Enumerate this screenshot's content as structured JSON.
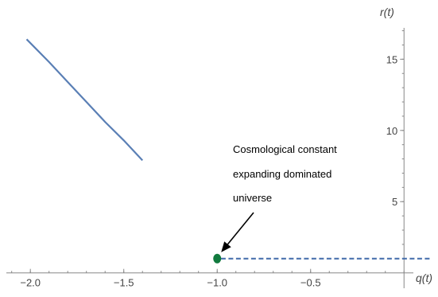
{
  "chart_data": {
    "type": "line",
    "xlabel": "q(t)",
    "ylabel": "r(t)",
    "xlim": [
      -2.12,
      0.05
    ],
    "ylim": [
      -0.8,
      17.2
    ],
    "x_ticks": [
      {
        "value": -2.0,
        "label": "−2.0"
      },
      {
        "value": -1.5,
        "label": "−1.5"
      },
      {
        "value": -1.0,
        "label": "−1.0"
      },
      {
        "value": -0.5,
        "label": "−0.5"
      }
    ],
    "y_ticks": [
      {
        "value": 5,
        "label": "5"
      },
      {
        "value": 10,
        "label": "10"
      },
      {
        "value": 15,
        "label": "15"
      }
    ],
    "y_minor_step": 1,
    "x_minor_step": 0.1,
    "series": [
      {
        "style": "solid",
        "color": "#5a7fb5",
        "x": [
          -2.02,
          -1.9,
          -1.8,
          -1.7,
          -1.6,
          -1.5,
          -1.4
        ],
        "y": [
          16.4,
          14.8,
          13.4,
          12.0,
          10.6,
          9.3,
          7.9
        ]
      },
      {
        "style": "dashed",
        "color": "#4a72ae",
        "x": [
          -0.98,
          0.15
        ],
        "y": [
          1.0,
          1.0
        ]
      }
    ],
    "points": [
      {
        "x": -1.0,
        "y": 1.0,
        "color": "#117a3e"
      }
    ],
    "annotation": {
      "lines": [
        "Cosmological constant",
        "expanding  dominated",
        "universe"
      ],
      "target": {
        "x": -1.0,
        "y": 1.0
      }
    }
  }
}
